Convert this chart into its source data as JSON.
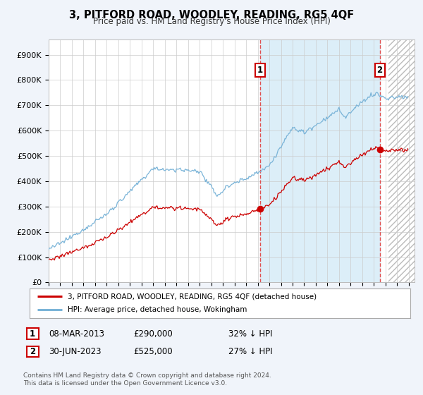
{
  "title": "3, PITFORD ROAD, WOODLEY, READING, RG5 4QF",
  "subtitle": "Price paid vs. HM Land Registry's House Price Index (HPI)",
  "ylabel_ticks": [
    "£0",
    "£100K",
    "£200K",
    "£300K",
    "£400K",
    "£500K",
    "£600K",
    "£700K",
    "£800K",
    "£900K"
  ],
  "ytick_values": [
    0,
    100000,
    200000,
    300000,
    400000,
    500000,
    600000,
    700000,
    800000,
    900000
  ],
  "ylim": [
    0,
    960000
  ],
  "xlim_start": 1995.0,
  "xlim_end": 2026.5,
  "xtick_years": [
    1995,
    1996,
    1997,
    1998,
    1999,
    2000,
    2001,
    2002,
    2003,
    2004,
    2005,
    2006,
    2007,
    2008,
    2009,
    2010,
    2011,
    2012,
    2013,
    2014,
    2015,
    2016,
    2017,
    2018,
    2019,
    2020,
    2021,
    2022,
    2023,
    2024,
    2025,
    2026
  ],
  "hpi_color": "#7ab4d8",
  "hpi_fill_color": "#dceef8",
  "price_color": "#cc0000",
  "transaction1_x": 2013.19,
  "transaction1_y": 290000,
  "transaction2_x": 2023.5,
  "transaction2_y": 525000,
  "vline1_x": 2013.19,
  "vline2_x": 2023.5,
  "legend_line1": "3, PITFORD ROAD, WOODLEY, READING, RG5 4QF (detached house)",
  "legend_line2": "HPI: Average price, detached house, Wokingham",
  "annotation1_date": "08-MAR-2013",
  "annotation1_price": "£290,000",
  "annotation1_hpi": "32% ↓ HPI",
  "annotation2_date": "30-JUN-2023",
  "annotation2_price": "£525,000",
  "annotation2_hpi": "27% ↓ HPI",
  "footnote": "Contains HM Land Registry data © Crown copyright and database right 2024.\nThis data is licensed under the Open Government Licence v3.0.",
  "background_color": "#f0f4fa",
  "plot_bg_color": "#ffffff",
  "hatch_start": 2024.25,
  "hatch_end": 2026.5
}
